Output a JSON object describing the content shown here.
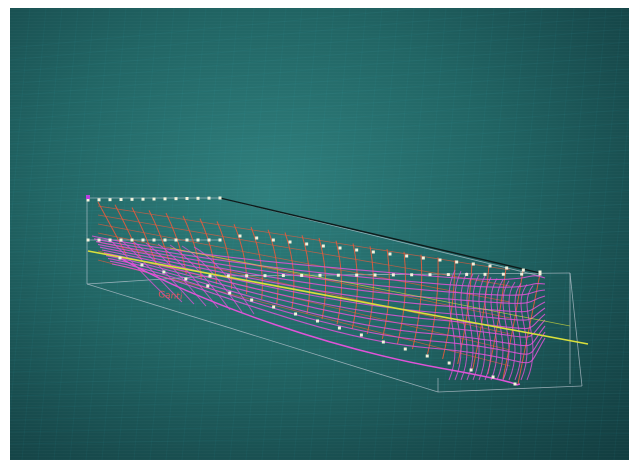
{
  "viewport": {
    "background": "#216564",
    "description_colors": {
      "grid": "#3fc0d0",
      "frame": "#b9c6d0",
      "stations": "#e85a3a",
      "hull_lines": "#e052d8",
      "waterline": "#d8df3a",
      "control_points": "#f2f2dc"
    }
  },
  "model": {
    "annotation": "Ganti"
  }
}
